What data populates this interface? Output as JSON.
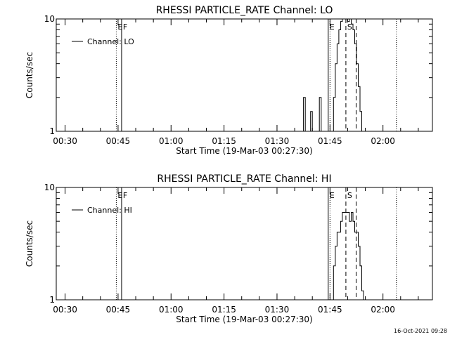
{
  "chart_data": [
    {
      "type": "line",
      "title": "RHESSI PARTICLE_RATE Channel: LO",
      "xlabel": "Start Time (19-Mar-03 00:27:30)",
      "ylabel": "Counts/sec",
      "x_ticks": [
        "00:30",
        "00:45",
        "01:00",
        "01:15",
        "01:30",
        "01:45",
        "02:00"
      ],
      "x_tick_minutes": [
        30,
        45,
        60,
        75,
        90,
        105,
        120
      ],
      "xlim_minutes": [
        27.5,
        134
      ],
      "y_scale": "log",
      "ylim": [
        1,
        10
      ],
      "y_tick_labels": [
        "1",
        "10"
      ],
      "legend": "Channel: LO",
      "legend_position": "top-left",
      "markers": [
        {
          "label": "E",
          "t_minutes": 44.5,
          "style": "dotted"
        },
        {
          "label": "F",
          "t_minutes": 46.0,
          "style": "solid"
        },
        {
          "label": "E",
          "t_minutes": 104.5,
          "style": "solid"
        },
        {
          "label": "S",
          "t_minutes": 109.5,
          "style": "dashed"
        },
        {
          "label": "",
          "t_minutes": 105.0,
          "style": "dotted"
        },
        {
          "label": "",
          "t_minutes": 112.4,
          "style": "dashed"
        },
        {
          "label": "",
          "t_minutes": 123.8,
          "style": "dotted"
        }
      ],
      "series": [
        {
          "name": "Channel: LO",
          "x_minutes": [
            97.0,
            97.5,
            97.5,
            98.0,
            98.0,
            98.5,
            98.5,
            99.5,
            99.5,
            100.0,
            100.0,
            100.5,
            100.5,
            102.0,
            102.0,
            102.5,
            102.5,
            103.0,
            103.0,
            103.5,
            103.5,
            106.0,
            106.0,
            106.5,
            106.5,
            107.0,
            107.0,
            107.5,
            107.5,
            108.0,
            108.0,
            108.5,
            108.5,
            109.0,
            109.0,
            109.5,
            109.5,
            110.0,
            110.0,
            110.5,
            110.5,
            111.0,
            111.0,
            111.5,
            111.5,
            112.0,
            112.0,
            112.5,
            112.5,
            113.0,
            113.0,
            113.5,
            113.5,
            114.0,
            114.0,
            114.5,
            114.5,
            115.0,
            115.0,
            115.5,
            115.5,
            116.0
          ],
          "values": [
            1.0,
            1.0,
            2.0,
            2.0,
            1.0,
            1.0,
            1.0,
            1.0,
            1.5,
            1.5,
            1.0,
            1.0,
            1.0,
            1.0,
            2.0,
            2.0,
            1.0,
            1.0,
            1.0,
            1.0,
            1.0,
            1.0,
            2.0,
            2.0,
            4.0,
            4.0,
            6.0,
            6.0,
            8.0,
            8.0,
            9.5,
            9.5,
            10.0,
            10.0,
            10.0,
            10.0,
            10.0,
            10.0,
            9.5,
            9.5,
            10.0,
            10.0,
            9.0,
            9.0,
            8.0,
            8.0,
            6.0,
            6.0,
            4.0,
            4.0,
            2.5,
            2.5,
            1.5,
            1.5,
            1.0,
            1.0,
            1.0,
            1.0,
            1.0,
            1.0,
            1.0,
            1.0
          ]
        }
      ]
    },
    {
      "type": "line",
      "title": "RHESSI PARTICLE_RATE Channel: HI",
      "xlabel": "Start Time (19-Mar-03 00:27:30)",
      "ylabel": "Counts/sec",
      "x_ticks": [
        "00:30",
        "00:45",
        "01:00",
        "01:15",
        "01:30",
        "01:45",
        "02:00"
      ],
      "x_tick_minutes": [
        30,
        45,
        60,
        75,
        90,
        105,
        120
      ],
      "xlim_minutes": [
        27.5,
        134
      ],
      "y_scale": "log",
      "ylim": [
        1,
        10
      ],
      "y_tick_labels": [
        "1",
        "10"
      ],
      "legend": "Channel: HI",
      "legend_position": "top-left",
      "markers": [
        {
          "label": "E",
          "t_minutes": 44.5,
          "style": "dotted"
        },
        {
          "label": "F",
          "t_minutes": 46.0,
          "style": "solid"
        },
        {
          "label": "E",
          "t_minutes": 104.5,
          "style": "solid"
        },
        {
          "label": "S",
          "t_minutes": 109.5,
          "style": "dashed"
        },
        {
          "label": "",
          "t_minutes": 105.0,
          "style": "dotted"
        },
        {
          "label": "",
          "t_minutes": 112.4,
          "style": "dashed"
        },
        {
          "label": "",
          "t_minutes": 123.8,
          "style": "dotted"
        }
      ],
      "series": [
        {
          "name": "Channel: HI",
          "x_minutes": [
            105.5,
            106.0,
            106.0,
            106.5,
            106.5,
            107.0,
            107.0,
            108.0,
            108.0,
            108.5,
            108.5,
            110.5,
            110.5,
            111.0,
            111.0,
            111.5,
            111.5,
            112.0,
            112.0,
            113.0,
            113.0,
            113.5,
            113.5,
            114.0,
            114.0,
            114.5,
            114.5,
            115.0,
            115.0,
            116.0
          ],
          "values": [
            1.0,
            1.0,
            2.0,
            2.0,
            3.0,
            3.0,
            4.0,
            4.0,
            5.0,
            5.0,
            6.0,
            6.0,
            5.0,
            5.0,
            6.0,
            6.0,
            5.0,
            5.0,
            4.0,
            4.0,
            3.0,
            3.0,
            2.0,
            2.0,
            1.2,
            1.2,
            1.0,
            1.0,
            1.0,
            1.0
          ]
        }
      ]
    }
  ],
  "footer": {
    "timestamp": "16-Oct-2021 09:28"
  }
}
